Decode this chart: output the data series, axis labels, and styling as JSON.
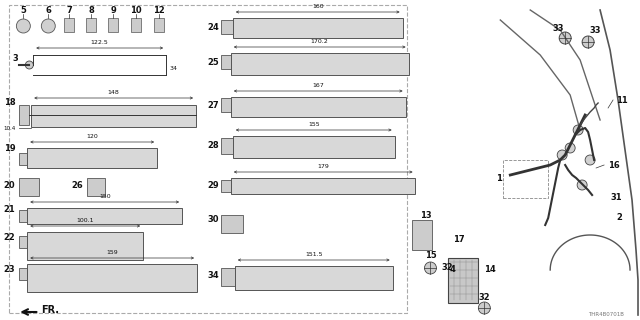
{
  "bg_color": "#f5f5f5",
  "diagram_id": "THR4B0701B",
  "fig_width": 6.4,
  "fig_height": 3.2,
  "dpi": 100
}
